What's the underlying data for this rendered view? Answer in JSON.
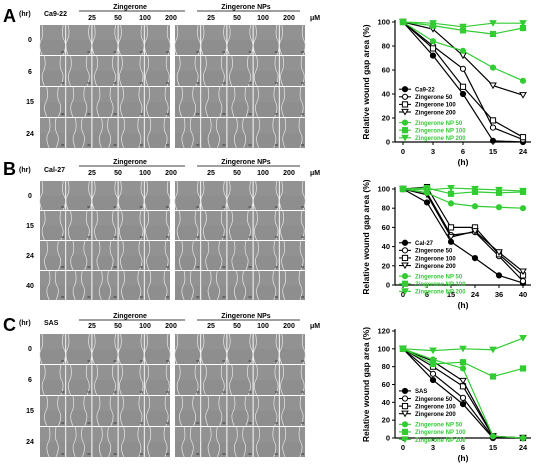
{
  "colors": {
    "black": "#000000",
    "green": "#33cc33",
    "cell_bg": "#8e8e8e"
  },
  "panels": [
    {
      "letter": "A",
      "header": {
        "hr": "(hr)",
        "cell_line": "Ca9-22",
        "group1": "Zingerone",
        "group2": "Zingerone NPs",
        "doses": [
          "25",
          "50",
          "100",
          "200"
        ],
        "unit": "μM"
      },
      "time_labels": [
        "0",
        "6",
        "15",
        "24"
      ]
    },
    {
      "letter": "B",
      "header": {
        "hr": "(hr)",
        "cell_line": "Cal-27",
        "group1": "Zingerone",
        "group2": "Zingerone NPs",
        "doses": [
          "25",
          "50",
          "100",
          "200"
        ],
        "unit": "μM"
      },
      "time_labels": [
        "0",
        "15",
        "24",
        "40"
      ]
    },
    {
      "letter": "C",
      "header": {
        "hr": "(hr)",
        "cell_line": "SAS",
        "group1": "Zingerone",
        "group2": "Zingerone NPs",
        "doses": [
          "25",
          "50",
          "100",
          "200"
        ],
        "unit": "μM"
      },
      "time_labels": [
        "0",
        "6",
        "15",
        "24"
      ]
    }
  ],
  "chart_data": [
    {
      "type": "line",
      "ylabel": "Relative wound gap area (%)",
      "xlabel": "(h)",
      "x": [
        0,
        3,
        6,
        15,
        24
      ],
      "x_ticks": [
        "0",
        "3",
        "6",
        "15",
        "24"
      ],
      "y_ticks": [
        "0",
        "20",
        "40",
        "60",
        "80",
        "100"
      ],
      "ylim": [
        0,
        100
      ],
      "legend_position": "lower-left",
      "series": [
        {
          "name": "Ca9-22",
          "color": "#000000",
          "marker": "circle-filled",
          "values": [
            100,
            72,
            40,
            1,
            0
          ]
        },
        {
          "name": "Zingerone 50",
          "color": "#000000",
          "marker": "circle-open",
          "values": [
            100,
            80,
            61,
            12,
            2
          ]
        },
        {
          "name": "Zingerone 100",
          "color": "#000000",
          "marker": "square-open",
          "values": [
            100,
            78,
            46,
            18,
            4
          ]
        },
        {
          "name": "Zingerone 200",
          "color": "#000000",
          "marker": "triangle-down-open",
          "values": [
            100,
            94,
            72,
            47,
            39
          ]
        },
        {
          "name": "Zingerone NP 50",
          "color": "#33cc33",
          "marker": "circle-filled",
          "values": [
            100,
            84,
            76,
            62,
            51
          ]
        },
        {
          "name": "Zingerone NP 100",
          "color": "#33cc33",
          "marker": "square-filled",
          "values": [
            100,
            97,
            93,
            90,
            95
          ]
        },
        {
          "name": "Zingerone NP 200",
          "color": "#33cc33",
          "marker": "triangle-down-filled",
          "values": [
            100,
            99,
            96,
            99,
            99
          ]
        }
      ]
    },
    {
      "type": "line",
      "ylabel": "Relative wound gap area (%)",
      "xlabel": "(h)",
      "x": [
        0,
        6,
        15,
        24,
        36,
        40
      ],
      "x_ticks": [
        "0",
        "6",
        "15",
        "24",
        "36",
        "40"
      ],
      "y_ticks": [
        "0",
        "20",
        "40",
        "60",
        "80",
        "100"
      ],
      "ylim": [
        0,
        100
      ],
      "legend_position": "lower-left",
      "series": [
        {
          "name": "Cal-27",
          "color": "#000000",
          "marker": "circle-filled",
          "values": [
            100,
            86,
            45,
            28,
            10,
            2
          ]
        },
        {
          "name": "Zingerone 50",
          "color": "#000000",
          "marker": "circle-open",
          "values": [
            100,
            96,
            52,
            55,
            30,
            4
          ]
        },
        {
          "name": "Zingerone 100",
          "color": "#000000",
          "marker": "square-open",
          "values": [
            100,
            102,
            60,
            60,
            32,
            10
          ]
        },
        {
          "name": "Zingerone 200",
          "color": "#000000",
          "marker": "triangle-down-open",
          "values": [
            100,
            94,
            50,
            56,
            34,
            14
          ]
        },
        {
          "name": "Zingerone NP 50",
          "color": "#33cc33",
          "marker": "circle-filled",
          "values": [
            100,
            96,
            85,
            82,
            81,
            80
          ]
        },
        {
          "name": "Zingerone NP 100",
          "color": "#33cc33",
          "marker": "square-filled",
          "values": [
            100,
            101,
            95,
            97,
            96,
            97
          ]
        },
        {
          "name": "Zingerone NP 200",
          "color": "#33cc33",
          "marker": "triangle-down-filled",
          "values": [
            100,
            99,
            101,
            100,
            99,
            98
          ]
        }
      ]
    },
    {
      "type": "line",
      "ylabel": "Relative wound gap area (%)",
      "xlabel": "(h)",
      "x": [
        0,
        3,
        6,
        15,
        24
      ],
      "x_ticks": [
        "0",
        "3",
        "6",
        "15",
        "24"
      ],
      "y_ticks": [
        "0",
        "20",
        "40",
        "60",
        "80",
        "100",
        "120"
      ],
      "ylim": [
        0,
        120
      ],
      "legend_position": "lower-left",
      "series": [
        {
          "name": "SAS",
          "color": "#000000",
          "marker": "circle-filled",
          "values": [
            100,
            65,
            38,
            0,
            0
          ]
        },
        {
          "name": "Zingerone 50",
          "color": "#000000",
          "marker": "circle-open",
          "values": [
            100,
            72,
            45,
            1,
            0
          ]
        },
        {
          "name": "Zingerone 100",
          "color": "#000000",
          "marker": "square-open",
          "values": [
            100,
            80,
            58,
            2,
            0
          ]
        },
        {
          "name": "Zingerone 200",
          "color": "#000000",
          "marker": "triangle-down-open",
          "values": [
            100,
            86,
            64,
            2,
            0
          ]
        },
        {
          "name": "Zingerone NP 50",
          "color": "#33cc33",
          "marker": "circle-filled",
          "values": [
            100,
            88,
            78,
            2,
            0
          ]
        },
        {
          "name": "Zingerone NP 100",
          "color": "#33cc33",
          "marker": "square-filled",
          "values": [
            100,
            83,
            85,
            69,
            78
          ]
        },
        {
          "name": "Zingerone NP 200",
          "color": "#33cc33",
          "marker": "triangle-down-filled",
          "values": [
            100,
            98,
            100,
            99,
            112
          ]
        }
      ]
    }
  ]
}
